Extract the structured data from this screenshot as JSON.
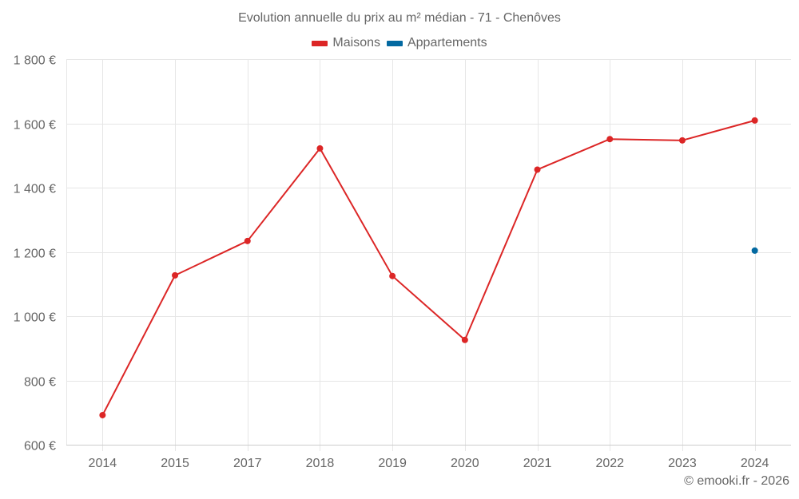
{
  "title": "Evolution annuelle du prix au m² médian - 71 - Chenôves",
  "legend": [
    {
      "label": "Maisons",
      "color": "#dc2626"
    },
    {
      "label": "Appartements",
      "color": "#0369a1"
    }
  ],
  "credit": "© emooki.fr - 2026",
  "chart_data": {
    "type": "line",
    "title": "Evolution annuelle du prix au m² médian - 71 - Chenôves",
    "xlabel": "",
    "ylabel": "",
    "categories": [
      "2014",
      "2015",
      "2017",
      "2018",
      "2019",
      "2020",
      "2021",
      "2022",
      "2023",
      "2024"
    ],
    "series": [
      {
        "name": "Maisons",
        "color": "#dc2626",
        "values": [
          692,
          1127,
          1234,
          1522,
          1125,
          926,
          1456,
          1551,
          1547,
          1609
        ]
      },
      {
        "name": "Appartements",
        "color": "#0369a1",
        "values": [
          null,
          null,
          null,
          null,
          null,
          null,
          null,
          null,
          null,
          1204
        ]
      }
    ],
    "ylim": [
      600,
      1800
    ],
    "yticks": [
      600,
      800,
      1000,
      1200,
      1400,
      1600,
      1800
    ],
    "ytick_labels": [
      "600 €",
      "800 €",
      "1 000 €",
      "1 200 €",
      "1 400 €",
      "1 600 €",
      "1 800 €"
    ],
    "grid": true,
    "legend_position": "top"
  }
}
